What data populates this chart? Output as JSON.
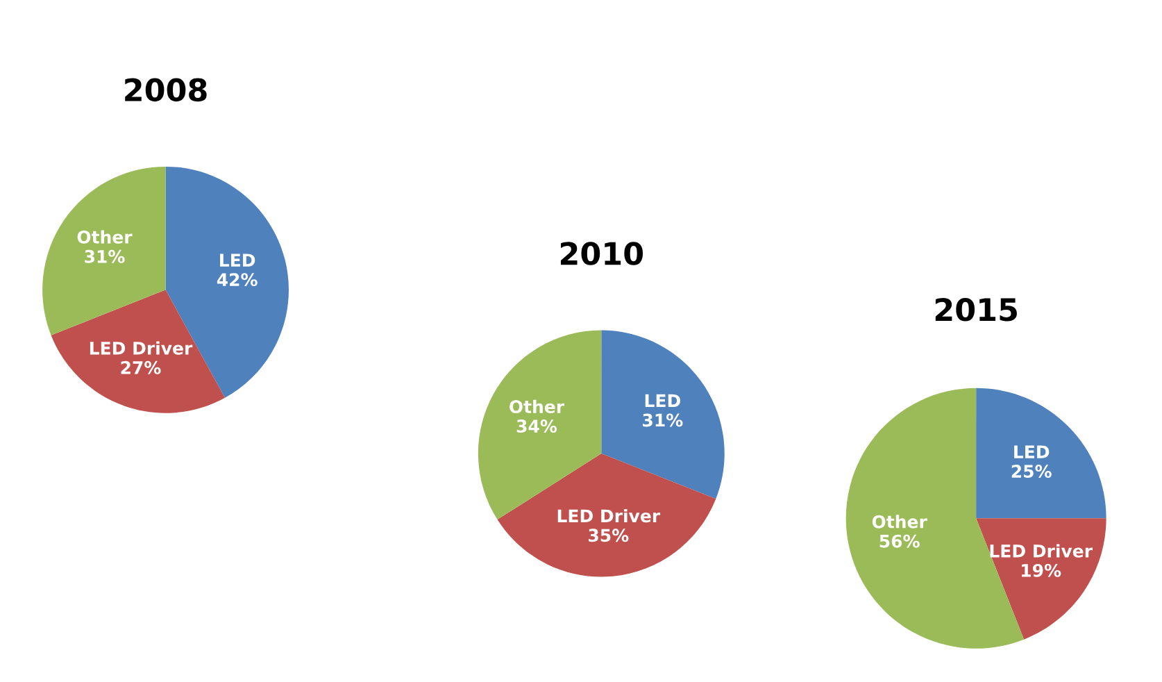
{
  "chart_data": [
    {
      "type": "pie",
      "title": "2008",
      "categories": [
        "LED",
        "LED Driver",
        "Other"
      ],
      "values": [
        42,
        27,
        31
      ],
      "value_labels": [
        "42%",
        "27%",
        "31%"
      ],
      "colors": [
        "#4f81bd",
        "#c0504d",
        "#9bbb59"
      ]
    },
    {
      "type": "pie",
      "title": "2010",
      "categories": [
        "LED",
        "LED Driver",
        "Other"
      ],
      "values": [
        31,
        35,
        34
      ],
      "value_labels": [
        "31%",
        "35%",
        "34%"
      ],
      "colors": [
        "#4f81bd",
        "#c0504d",
        "#9bbb59"
      ]
    },
    {
      "type": "pie",
      "title": "2015",
      "categories": [
        "LED",
        "LED Driver",
        "Other"
      ],
      "values": [
        25,
        19,
        56
      ],
      "value_labels": [
        "25%",
        "19%",
        "56%"
      ],
      "colors": [
        "#4f81bd",
        "#c0504d",
        "#9bbb59"
      ]
    }
  ]
}
